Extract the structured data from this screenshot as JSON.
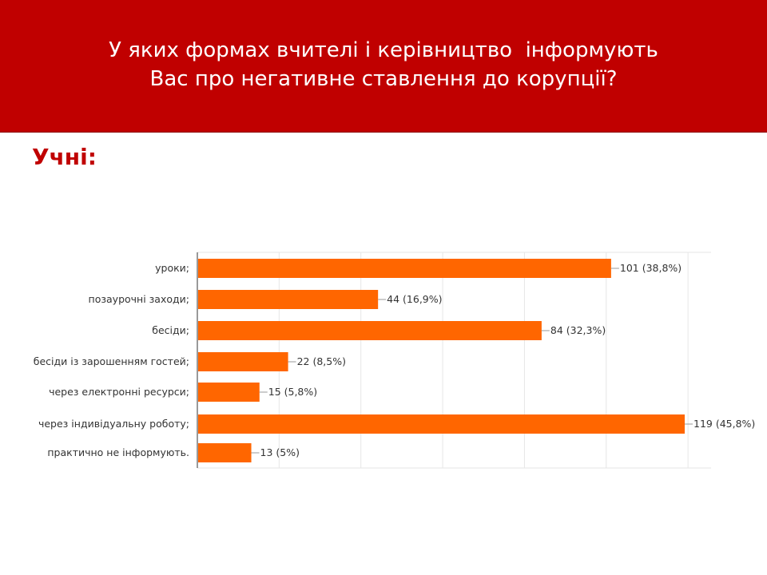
{
  "slide": {
    "title_line1": "У яких формах вчителі і керівництво  інформують",
    "title_line2": "Вас про негативне ставлення до корупції?",
    "subtitle": "Учні:"
  },
  "colors": {
    "header_bg": "#c00000",
    "bar": "#ff6600",
    "subtitle": "#c00000"
  },
  "chart_data": {
    "type": "bar",
    "orientation": "horizontal",
    "categories": [
      "уроки;",
      "позаурочні заходи;",
      "бесіди;",
      "бесіди із зарошенням гостей;",
      "через електронні ресурси;",
      "через індивідуальну роботу;",
      "практично не інформують."
    ],
    "values": [
      101,
      44,
      84,
      22,
      15,
      119,
      13
    ],
    "data_labels": [
      "101 (38,8%)",
      "44 (16,9%)",
      "84 (32,3%)",
      "22 (8,5%)",
      "15 (5,8%)",
      "119 (45,8%)",
      "13 (5%)"
    ],
    "xlim": [
      0,
      120
    ],
    "grid": true,
    "legend": "none"
  }
}
